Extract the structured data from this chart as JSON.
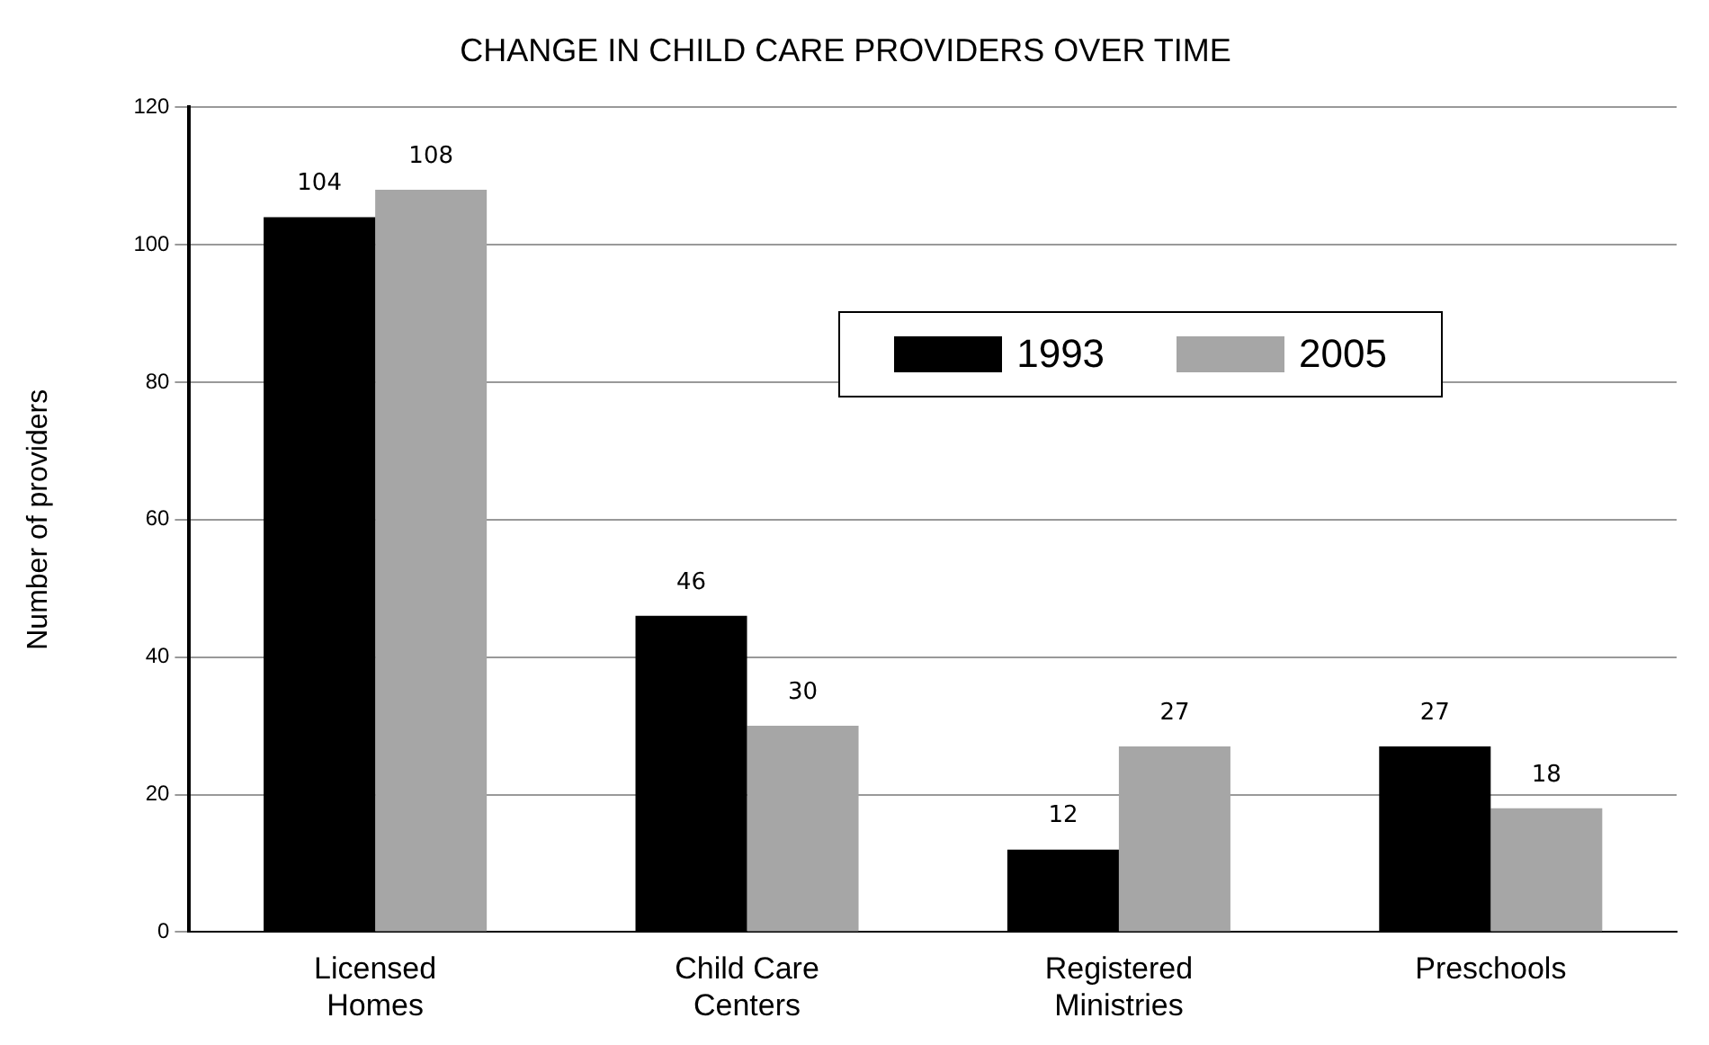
{
  "chart_data": {
    "type": "bar",
    "title": "CHANGE IN CHILD CARE PROVIDERS OVER TIME",
    "ylabel": "Number of providers",
    "categories": [
      "Licensed Homes",
      "Child Care Centers",
      "Registered Ministries",
      "Preschools"
    ],
    "series": [
      {
        "name": "1993",
        "color": "#000000",
        "values": [
          104,
          46,
          12,
          27
        ]
      },
      {
        "name": "2005",
        "color": "#a6a6a6",
        "values": [
          108,
          30,
          27,
          18
        ]
      }
    ],
    "ylim": [
      0,
      120
    ],
    "yticks": [
      0,
      20,
      40,
      60,
      80,
      100,
      120
    ],
    "grid": "y",
    "legend": "top right",
    "data_labels": true
  }
}
